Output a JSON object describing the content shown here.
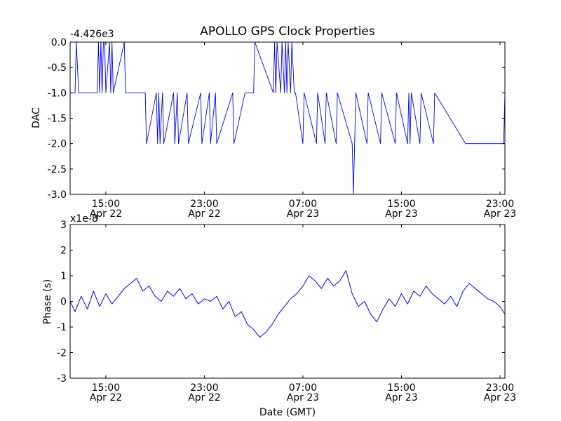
{
  "chart_data": [
    {
      "type": "line",
      "title": "APOLLO GPS Clock Properties",
      "xlabel": "",
      "ylabel": "DAC",
      "y_offset_text": "-4.426e3",
      "ylim": [
        -3.0,
        0.0
      ],
      "y_ticks": [
        0.0,
        -0.5,
        -1.0,
        -1.5,
        -2.0,
        -2.5,
        -3.0
      ],
      "y_tick_labels": [
        "0.0",
        "-0.5",
        "-1.0",
        "-1.5",
        "-2.0",
        "-2.5",
        "-3.0"
      ],
      "x_ticks": [
        {
          "line1": "15:00",
          "line2": "Apr 22"
        },
        {
          "line1": "23:00",
          "line2": "Apr 22"
        },
        {
          "line1": "07:00",
          "line2": "Apr 23"
        },
        {
          "line1": "15:00",
          "line2": "Apr 23"
        },
        {
          "line1": "23:00",
          "line2": "Apr 23"
        }
      ],
      "x_tick_hours": [
        15,
        23,
        31,
        39,
        47
      ],
      "xlim_hours": [
        12.1,
        47.4
      ],
      "line_color": "#0000ff",
      "x_hours": [
        12.1,
        12.5,
        12.6,
        12.8,
        13.2,
        14.3,
        14.4,
        14.5,
        14.6,
        14.7,
        14.8,
        14.9,
        15.0,
        15.3,
        15.4,
        15.5,
        15.6,
        16.5,
        16.6,
        18.2,
        18.3,
        19.1,
        19.2,
        19.3,
        19.4,
        19.6,
        19.7,
        20.5,
        20.6,
        20.8,
        20.9,
        21.6,
        21.7,
        22.7,
        22.8,
        23.4,
        23.5,
        23.9,
        24.0,
        25.3,
        25.4,
        26.3,
        26.4,
        27.0,
        27.1,
        28.6,
        28.7,
        28.8,
        28.9,
        29.2,
        29.3,
        29.5,
        29.6,
        29.7,
        29.8,
        30.0,
        30.1,
        30.3,
        30.4,
        31.0,
        31.1,
        32.1,
        32.2,
        32.8,
        32.9,
        33.7,
        33.8,
        35.0,
        35.1,
        35.2,
        35.3,
        36.2,
        36.3,
        37.3,
        37.4,
        38.5,
        38.6,
        39.5,
        39.6,
        39.7,
        39.8,
        40.5,
        40.6,
        41.6,
        41.7,
        44.2,
        44.3,
        47.3,
        47.4
      ],
      "values": [
        -1.0,
        -1.0,
        0.0,
        -1.0,
        -1.0,
        -1.0,
        0.0,
        -1.0,
        0.0,
        -1.0,
        0.0,
        0.0,
        -1.0,
        0.0,
        -1.0,
        0.0,
        -1.0,
        0.0,
        -1.0,
        -1.0,
        -2.0,
        -1.0,
        -2.0,
        -1.0,
        -2.0,
        -1.0,
        -2.0,
        -1.0,
        -2.0,
        -1.0,
        -2.0,
        -1.0,
        -2.0,
        -1.0,
        -2.0,
        -1.0,
        -2.0,
        -1.0,
        -2.0,
        -1.0,
        -2.0,
        -1.0,
        -1.0,
        -1.0,
        0.0,
        -1.0,
        0.0,
        -1.0,
        0.0,
        -1.0,
        0.0,
        -1.0,
        0.0,
        -1.0,
        0.0,
        -1.0,
        0.0,
        -1.0,
        -1.0,
        -2.0,
        -1.0,
        -2.0,
        -1.0,
        -2.0,
        -1.0,
        -2.0,
        -1.0,
        -2.0,
        -3.0,
        -2.0,
        -1.0,
        -2.0,
        -1.0,
        -2.0,
        -1.0,
        -2.0,
        -1.0,
        -2.0,
        -1.0,
        -2.0,
        -1.0,
        -2.0,
        -1.0,
        -2.0,
        -1.0,
        -2.0,
        -2.0,
        -2.0,
        -1.0
      ]
    },
    {
      "type": "line",
      "title": "",
      "xlabel": "Date (GMT)",
      "ylabel": "Phase (s)",
      "y_offset_text": "x1e-8",
      "ylim": [
        -3,
        3
      ],
      "y_ticks": [
        3,
        2,
        1,
        0,
        -1,
        -2,
        -3
      ],
      "y_tick_labels": [
        "3",
        "2",
        "1",
        "0",
        "-1",
        "-2",
        "-3"
      ],
      "x_ticks": [
        {
          "line1": "15:00",
          "line2": "Apr 22"
        },
        {
          "line1": "23:00",
          "line2": "Apr 22"
        },
        {
          "line1": "07:00",
          "line2": "Apr 23"
        },
        {
          "line1": "15:00",
          "line2": "Apr 23"
        },
        {
          "line1": "23:00",
          "line2": "Apr 23"
        }
      ],
      "x_tick_hours": [
        15,
        23,
        31,
        39,
        47
      ],
      "xlim_hours": [
        12.1,
        47.4
      ],
      "line_color": "#0000ff",
      "x_hours": [
        12.1,
        12.5,
        13.0,
        13.5,
        14.0,
        14.5,
        15.0,
        15.5,
        16.0,
        16.5,
        17.0,
        17.5,
        18.0,
        18.5,
        19.0,
        19.5,
        20.0,
        20.5,
        21.0,
        21.5,
        22.0,
        22.5,
        23.0,
        23.5,
        24.0,
        24.5,
        25.0,
        25.5,
        26.0,
        26.5,
        27.0,
        27.5,
        28.0,
        28.5,
        29.0,
        29.5,
        30.0,
        30.5,
        31.0,
        31.5,
        32.0,
        32.5,
        33.0,
        33.5,
        34.0,
        34.5,
        35.0,
        35.5,
        36.0,
        36.5,
        37.0,
        37.5,
        38.0,
        38.5,
        39.0,
        39.5,
        40.0,
        40.5,
        41.0,
        41.5,
        42.0,
        42.5,
        43.0,
        43.5,
        44.0,
        44.5,
        45.0,
        45.5,
        46.0,
        46.5,
        47.0,
        47.4
      ],
      "values": [
        0.0,
        -0.4,
        0.2,
        -0.3,
        0.4,
        -0.2,
        0.3,
        -0.1,
        0.2,
        0.5,
        0.7,
        0.9,
        0.4,
        0.6,
        0.2,
        0.0,
        0.4,
        0.2,
        0.5,
        0.1,
        0.3,
        -0.1,
        0.1,
        0.0,
        0.2,
        -0.3,
        0.0,
        -0.6,
        -0.4,
        -0.9,
        -1.1,
        -1.4,
        -1.2,
        -0.9,
        -0.5,
        -0.2,
        0.1,
        0.3,
        0.6,
        1.0,
        0.8,
        0.5,
        0.9,
        0.6,
        0.8,
        1.2,
        0.3,
        -0.2,
        0.0,
        -0.5,
        -0.8,
        -0.3,
        0.1,
        -0.2,
        0.3,
        -0.1,
        0.4,
        0.2,
        0.6,
        0.3,
        0.1,
        -0.1,
        0.2,
        -0.2,
        0.4,
        0.7,
        0.5,
        0.3,
        0.1,
        0.0,
        -0.2,
        -0.5
      ]
    }
  ]
}
